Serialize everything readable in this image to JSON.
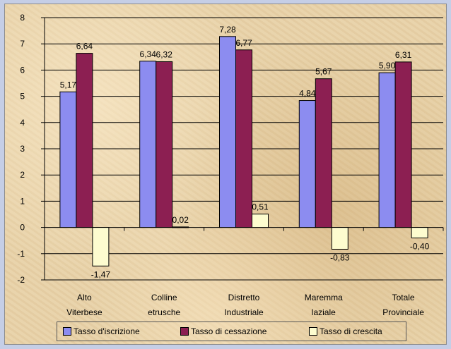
{
  "chart_data": {
    "type": "bar",
    "categories": [
      [
        "Alto",
        "Viterbese"
      ],
      [
        "Colline",
        "etrusche"
      ],
      [
        "Distretto",
        "Industriale"
      ],
      [
        "Maremma",
        "laziale"
      ],
      [
        "Totale",
        "Provinciale"
      ]
    ],
    "series": [
      {
        "name": "Tasso d'iscrizione",
        "color": "#8c8cf0",
        "values": [
          5.17,
          6.34,
          7.28,
          4.84,
          5.9
        ],
        "labels": [
          "5,17",
          "6,34",
          "7,28",
          "4,84",
          "5,90"
        ]
      },
      {
        "name": "Tasso di cessazione",
        "color": "#8c1f52",
        "values": [
          6.64,
          6.32,
          6.77,
          5.67,
          6.31
        ],
        "labels": [
          "6,64",
          "6,32",
          "6,77",
          "5,67",
          "6,31"
        ]
      },
      {
        "name": "Tasso di crescita",
        "color": "#fdfccf",
        "values": [
          -1.47,
          0.02,
          0.51,
          -0.83,
          -0.4
        ],
        "labels": [
          "-1,47",
          "0,02",
          "0,51",
          "-0,83",
          "-0,40"
        ]
      }
    ],
    "ylim": [
      -2,
      8
    ],
    "yticks": [
      -2,
      -1,
      0,
      1,
      2,
      3,
      4,
      5,
      6,
      7,
      8
    ],
    "grid": true,
    "legend_position": "bottom",
    "title": "",
    "xlabel": "",
    "ylabel": ""
  }
}
